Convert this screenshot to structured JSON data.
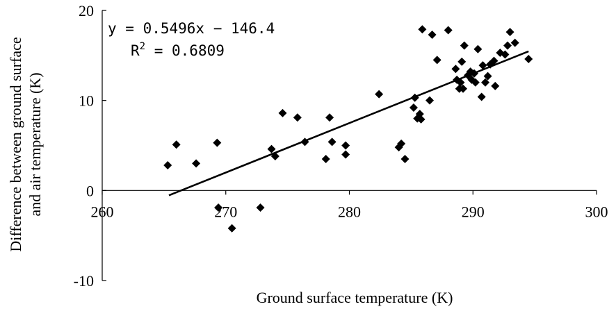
{
  "chart_data": {
    "type": "scatter",
    "xlabel": "Ground surface temperature (K)",
    "ylabel_lines": [
      "Difference between ground surface",
      "and air temperature (K)"
    ],
    "xlim": [
      260,
      300
    ],
    "ylim": [
      -10,
      20
    ],
    "xticks": [
      "260",
      "270",
      "280",
      "290",
      "300"
    ],
    "yticks": [
      "-10",
      "0",
      "10",
      "20"
    ],
    "equation": "y = 0.5496x − 146.4",
    "r_squared_label": "R",
    "r_squared_exp": "2",
    "r_squared_value": " = 0.6809",
    "trendline": {
      "slope": 0.5496,
      "intercept": -146.4,
      "x_range": [
        265.4,
        294.5
      ]
    },
    "marker_color": "#000000",
    "points": [
      [
        265.3,
        2.8
      ],
      [
        266.0,
        5.1
      ],
      [
        267.6,
        3.0
      ],
      [
        269.3,
        5.3
      ],
      [
        269.4,
        -1.9
      ],
      [
        270.5,
        -4.2
      ],
      [
        272.8,
        -1.9
      ],
      [
        273.7,
        4.6
      ],
      [
        274.0,
        3.8
      ],
      [
        274.6,
        8.6
      ],
      [
        275.8,
        8.1
      ],
      [
        276.4,
        5.4
      ],
      [
        278.1,
        3.5
      ],
      [
        278.4,
        8.1
      ],
      [
        278.6,
        5.4
      ],
      [
        279.7,
        5.0
      ],
      [
        279.7,
        4.0
      ],
      [
        282.4,
        10.7
      ],
      [
        284.0,
        4.8
      ],
      [
        284.2,
        5.2
      ],
      [
        284.5,
        3.5
      ],
      [
        285.2,
        9.2
      ],
      [
        285.3,
        10.3
      ],
      [
        285.5,
        8.0
      ],
      [
        285.7,
        8.5
      ],
      [
        285.8,
        7.9
      ],
      [
        285.9,
        17.9
      ],
      [
        286.5,
        10.0
      ],
      [
        286.7,
        17.3
      ],
      [
        287.1,
        14.5
      ],
      [
        288.0,
        17.8
      ],
      [
        288.6,
        13.5
      ],
      [
        288.7,
        12.3
      ],
      [
        288.9,
        11.3
      ],
      [
        289.0,
        12.0
      ],
      [
        289.1,
        14.3
      ],
      [
        289.2,
        11.3
      ],
      [
        289.3,
        16.1
      ],
      [
        289.6,
        12.8
      ],
      [
        289.8,
        13.2
      ],
      [
        289.9,
        12.3
      ],
      [
        290.1,
        13.0
      ],
      [
        290.2,
        12.0
      ],
      [
        290.4,
        15.7
      ],
      [
        290.7,
        10.4
      ],
      [
        290.8,
        13.9
      ],
      [
        291.0,
        12.0
      ],
      [
        291.2,
        12.7
      ],
      [
        291.4,
        14.0
      ],
      [
        291.7,
        14.4
      ],
      [
        291.8,
        11.6
      ],
      [
        292.2,
        15.3
      ],
      [
        292.6,
        15.1
      ],
      [
        292.8,
        16.1
      ],
      [
        293.0,
        17.6
      ],
      [
        293.4,
        16.4
      ],
      [
        294.5,
        14.6
      ]
    ]
  }
}
